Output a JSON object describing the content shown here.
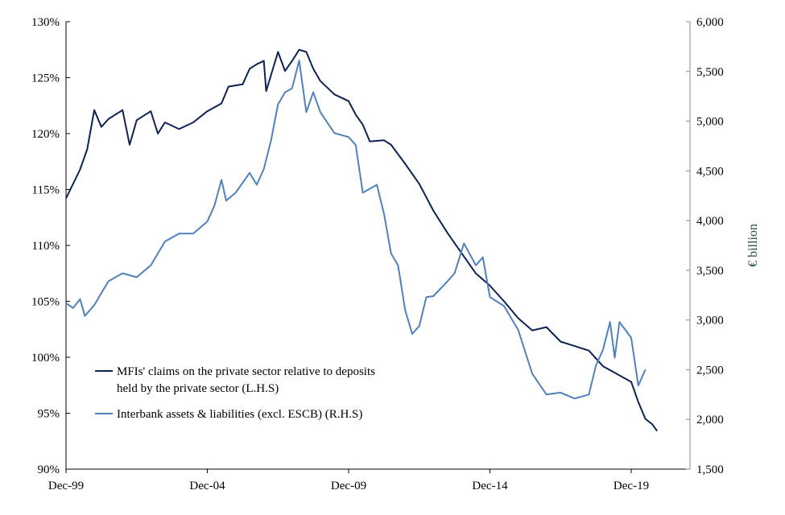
{
  "chart_data": {
    "type": "line",
    "title": "",
    "xlabel": "",
    "ylabel_left": "",
    "ylabel_right": "€ billion",
    "x_ticks": [
      "Dec-99",
      "Dec-04",
      "Dec-09",
      "Dec-14",
      "Dec-19"
    ],
    "y_left": {
      "range": [
        90,
        130
      ],
      "ticks": [
        "90%",
        "95%",
        "100%",
        "105%",
        "110%",
        "115%",
        "120%",
        "125%",
        "130%"
      ]
    },
    "y_right": {
      "range": [
        1500,
        6000
      ],
      "ticks": [
        "1,500",
        "2,000",
        "2,500",
        "3,000",
        "3,500",
        "4,000",
        "4,500",
        "5,000",
        "5,500",
        "6,000"
      ]
    },
    "grid": false,
    "legend_placement": "bottom-left",
    "series": [
      {
        "name": "MFIs' claims on the private sector relative to deposits held by the private sector (L.H.S)",
        "legend_lines": [
          "MFIs' claims on the private sector relative to deposits",
          "held by the private sector (L.H.S)"
        ],
        "axis": "left",
        "color": "#0c2256",
        "points": [
          [
            "1999-12",
            114.2
          ],
          [
            "2000-06",
            116.8
          ],
          [
            "2000-09",
            118.6
          ],
          [
            "2000-12",
            122.1
          ],
          [
            "2001-03",
            120.6
          ],
          [
            "2001-06",
            121.3
          ],
          [
            "2001-12",
            122.1
          ],
          [
            "2002-03",
            119.0
          ],
          [
            "2002-06",
            121.2
          ],
          [
            "2002-12",
            122.0
          ],
          [
            "2003-03",
            120.0
          ],
          [
            "2003-06",
            121.0
          ],
          [
            "2003-12",
            120.4
          ],
          [
            "2004-06",
            121.0
          ],
          [
            "2004-12",
            122.0
          ],
          [
            "2005-06",
            122.7
          ],
          [
            "2005-09",
            124.2
          ],
          [
            "2006-03",
            124.4
          ],
          [
            "2006-06",
            125.8
          ],
          [
            "2006-09",
            126.2
          ],
          [
            "2006-12",
            126.5
          ],
          [
            "2007-01",
            123.8
          ],
          [
            "2007-06",
            127.3
          ],
          [
            "2007-09",
            125.6
          ],
          [
            "2007-12",
            126.5
          ],
          [
            "2008-03",
            127.5
          ],
          [
            "2008-06",
            127.3
          ],
          [
            "2008-09",
            125.8
          ],
          [
            "2008-12",
            124.7
          ],
          [
            "2009-06",
            123.5
          ],
          [
            "2009-12",
            122.9
          ],
          [
            "2010-03",
            121.7
          ],
          [
            "2010-06",
            120.8
          ],
          [
            "2010-09",
            119.3
          ],
          [
            "2011-03",
            119.4
          ],
          [
            "2011-06",
            119.0
          ],
          [
            "2011-12",
            117.3
          ],
          [
            "2012-06",
            115.5
          ],
          [
            "2012-12",
            113.1
          ],
          [
            "2013-06",
            111.1
          ],
          [
            "2013-12",
            109.3
          ],
          [
            "2014-06",
            107.5
          ],
          [
            "2014-12",
            106.4
          ],
          [
            "2015-06",
            105.0
          ],
          [
            "2015-12",
            103.5
          ],
          [
            "2016-06",
            102.4
          ],
          [
            "2016-12",
            102.7
          ],
          [
            "2017-06",
            101.4
          ],
          [
            "2017-12",
            101.0
          ],
          [
            "2018-06",
            100.6
          ],
          [
            "2018-12",
            99.2
          ],
          [
            "2019-06",
            98.5
          ],
          [
            "2019-12",
            97.8
          ],
          [
            "2020-03",
            96.0
          ],
          [
            "2020-06",
            94.5
          ],
          [
            "2020-09",
            94.0
          ],
          [
            "2020-11",
            93.4
          ]
        ]
      },
      {
        "name": "Interbank assets & liabilities (excl. ESCB) (R.H.S)",
        "legend_lines": [
          "Interbank assets & liabilities (excl. ESCB) (R.H.S)"
        ],
        "axis": "right",
        "color": "#4f81bd",
        "points": [
          [
            "1999-12",
            3170
          ],
          [
            "2000-03",
            3120
          ],
          [
            "2000-06",
            3210
          ],
          [
            "2000-08",
            3040
          ],
          [
            "2000-12",
            3150
          ],
          [
            "2001-06",
            3390
          ],
          [
            "2001-12",
            3470
          ],
          [
            "2002-06",
            3430
          ],
          [
            "2002-12",
            3550
          ],
          [
            "2003-06",
            3790
          ],
          [
            "2003-12",
            3870
          ],
          [
            "2004-06",
            3870
          ],
          [
            "2004-12",
            3990
          ],
          [
            "2005-03",
            4150
          ],
          [
            "2005-06",
            4410
          ],
          [
            "2005-08",
            4200
          ],
          [
            "2005-12",
            4280
          ],
          [
            "2006-06",
            4480
          ],
          [
            "2006-09",
            4360
          ],
          [
            "2006-12",
            4520
          ],
          [
            "2007-03",
            4800
          ],
          [
            "2007-06",
            5170
          ],
          [
            "2007-09",
            5290
          ],
          [
            "2007-12",
            5330
          ],
          [
            "2008-03",
            5610
          ],
          [
            "2008-06",
            5090
          ],
          [
            "2008-09",
            5290
          ],
          [
            "2008-12",
            5090
          ],
          [
            "2009-06",
            4880
          ],
          [
            "2009-12",
            4840
          ],
          [
            "2010-03",
            4760
          ],
          [
            "2010-06",
            4280
          ],
          [
            "2010-09",
            4320
          ],
          [
            "2010-12",
            4360
          ],
          [
            "2011-03",
            4070
          ],
          [
            "2011-06",
            3670
          ],
          [
            "2011-09",
            3550
          ],
          [
            "2011-12",
            3100
          ],
          [
            "2012-03",
            2860
          ],
          [
            "2012-06",
            2940
          ],
          [
            "2012-09",
            3230
          ],
          [
            "2012-12",
            3240
          ],
          [
            "2013-06",
            3390
          ],
          [
            "2013-09",
            3470
          ],
          [
            "2014-01",
            3770
          ],
          [
            "2014-06",
            3550
          ],
          [
            "2014-09",
            3630
          ],
          [
            "2014-12",
            3230
          ],
          [
            "2015-06",
            3140
          ],
          [
            "2015-12",
            2900
          ],
          [
            "2016-06",
            2460
          ],
          [
            "2016-12",
            2250
          ],
          [
            "2017-06",
            2270
          ],
          [
            "2017-12",
            2210
          ],
          [
            "2018-06",
            2250
          ],
          [
            "2018-09",
            2540
          ],
          [
            "2018-12",
            2700
          ],
          [
            "2019-03",
            2980
          ],
          [
            "2019-05",
            2620
          ],
          [
            "2019-07",
            2980
          ],
          [
            "2019-12",
            2820
          ],
          [
            "2020-03",
            2340
          ],
          [
            "2020-06",
            2500
          ]
        ]
      }
    ]
  }
}
